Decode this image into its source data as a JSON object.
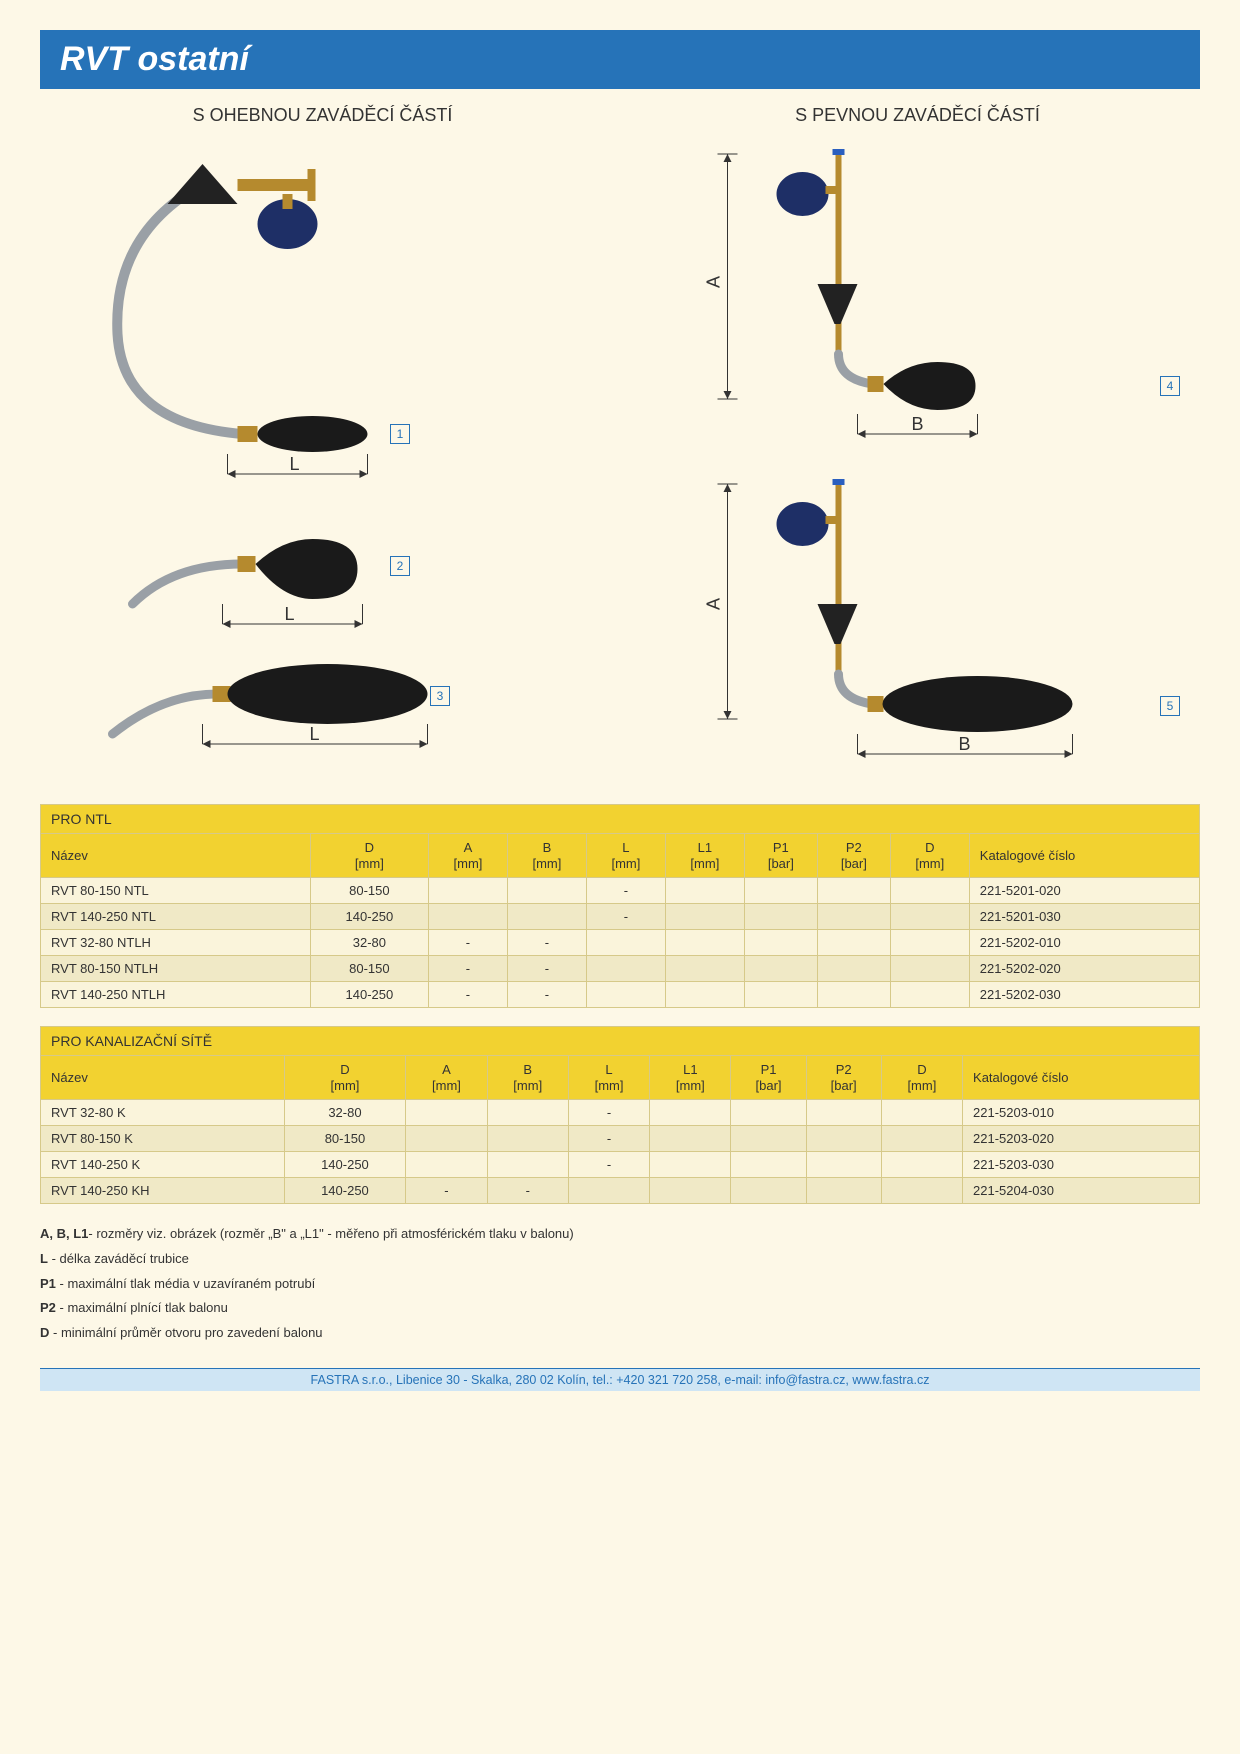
{
  "header": {
    "title": "RVT ostatní"
  },
  "diagrams": {
    "left_title": "S OHEBNOU ZAVÁDĚCÍ ČÁSTÍ",
    "right_title": "S PEVNOU ZAVÁDĚCÍ ČÁSTÍ",
    "dim_L": "L",
    "dim_A": "A",
    "dim_B": "B",
    "badges": {
      "b1": "1",
      "b2": "2",
      "b3": "3",
      "b4": "4",
      "b5": "5"
    },
    "colors": {
      "line": "#2673b8",
      "steel": "#9aa0a6",
      "brass": "#b58a2e",
      "knob": "#1e2f66",
      "rubber": "#1a1a1a",
      "cone": "#222222"
    }
  },
  "tables": {
    "columns": [
      "Název",
      "D\n[mm]",
      "A\n[mm]",
      "B\n[mm]",
      "L\n[mm]",
      "L1\n[mm]",
      "P1\n[bar]",
      "P2\n[bar]",
      "D\n[mm]",
      "Katalogové číslo"
    ],
    "ntl": {
      "title": "PRO NTL",
      "rows": [
        [
          "RVT 80-150 NTL",
          "80-150",
          "",
          "",
          "-",
          "",
          "",
          "",
          "",
          "221-5201-020"
        ],
        [
          "RVT 140-250 NTL",
          "140-250",
          "",
          "",
          "-",
          "",
          "",
          "",
          "",
          "221-5201-030"
        ],
        [
          "RVT 32-80 NTLH",
          "32-80",
          "-",
          "-",
          "",
          "",
          "",
          "",
          "",
          "221-5202-010"
        ],
        [
          "RVT 80-150 NTLH",
          "80-150",
          "-",
          "-",
          "",
          "",
          "",
          "",
          "",
          "221-5202-020"
        ],
        [
          "RVT 140-250 NTLH",
          "140-250",
          "-",
          "-",
          "",
          "",
          "",
          "",
          "",
          "221-5202-030"
        ]
      ]
    },
    "kan": {
      "title": "PRO KANALIZAČNÍ SÍTĚ",
      "rows": [
        [
          "RVT 32-80 K",
          "32-80",
          "",
          "",
          "-",
          "",
          "",
          "",
          "",
          "221-5203-010"
        ],
        [
          "RVT 80-150 K",
          "80-150",
          "",
          "",
          "-",
          "",
          "",
          "",
          "",
          "221-5203-020"
        ],
        [
          "RVT 140-250 K",
          "140-250",
          "",
          "",
          "-",
          "",
          "",
          "",
          "",
          "221-5203-030"
        ],
        [
          "RVT 140-250 KH",
          "140-250",
          "-",
          "-",
          "",
          "",
          "",
          "",
          "",
          "221-5204-030"
        ]
      ]
    }
  },
  "legend": {
    "l1a": "A, B, L1",
    "l1b": "- rozměry viz. obrázek (rozměr „B\" a „L1\" - měřeno při atmosférickém tlaku v balonu)",
    "l2a": "L",
    "l2b": " - délka zaváděcí trubice",
    "l3a": "P1",
    "l3b": " - maximální tlak média v uzavíraném potrubí",
    "l4a": "P2",
    "l4b": " - maximální plnící tlak balonu",
    "l5a": "D",
    "l5b": " - minimální průměr otvoru pro zavedení balonu"
  },
  "footer": "FASTRA s.r.o., Libenice 30 - Skalka, 280 02 Kolín, tel.: +420 321 720 258, e-mail: info@fastra.cz, www.fastra.cz"
}
